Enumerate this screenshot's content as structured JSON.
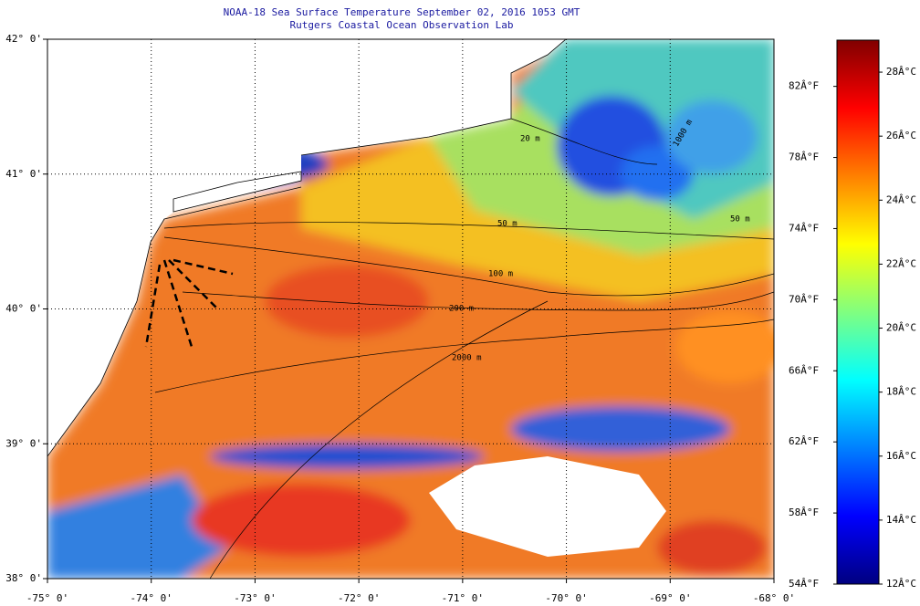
{
  "title": "NOAA-18 Sea Surface Temperature September 02, 2016 1053 GMT",
  "subtitle": "Rutgers Coastal Ocean Observation Lab",
  "map": {
    "xlim": [
      -75,
      -68
    ],
    "ylim": [
      38,
      42
    ],
    "xticks": [
      {
        "value": -75,
        "label": "-75° 0'"
      },
      {
        "value": -74,
        "label": "-74° 0'"
      },
      {
        "value": -73,
        "label": "-73° 0'"
      },
      {
        "value": -72,
        "label": "-72° 0'"
      },
      {
        "value": -71,
        "label": "-71° 0'"
      },
      {
        "value": -70,
        "label": "-70° 0'"
      },
      {
        "value": -69,
        "label": "-69° 0'"
      },
      {
        "value": -68,
        "label": "-68° 0'"
      }
    ],
    "yticks": [
      {
        "value": 38,
        "label": "38° 0'"
      },
      {
        "value": 39,
        "label": "39° 0'"
      },
      {
        "value": 40,
        "label": "40° 0'"
      },
      {
        "value": 41,
        "label": "41° 0'"
      },
      {
        "value": 42,
        "label": "42° 0'"
      }
    ],
    "grid": true,
    "contour_labels": [
      "20 m",
      "50 m",
      "100 m",
      "200 m",
      "2000 m",
      "1000 m",
      "50 m"
    ]
  },
  "colorbar": {
    "colors": [
      "#000080",
      "#0000ff",
      "#0080ff",
      "#00ffff",
      "#80ff80",
      "#ffff00",
      "#ff8000",
      "#ff0000",
      "#800000"
    ],
    "clim": [
      12,
      29
    ],
    "celsius_ticks": [
      {
        "value": 12,
        "label": "12Â°C"
      },
      {
        "value": 14,
        "label": "14Â°C"
      },
      {
        "value": 16,
        "label": "16Â°C"
      },
      {
        "value": 18,
        "label": "18Â°C"
      },
      {
        "value": 20,
        "label": "20Â°C"
      },
      {
        "value": 22,
        "label": "22Â°C"
      },
      {
        "value": 24,
        "label": "24Â°C"
      },
      {
        "value": 26,
        "label": "26Â°C"
      },
      {
        "value": 28,
        "label": "28Â°C"
      }
    ],
    "flim": [
      54,
      84.6
    ],
    "fahrenheit_ticks": [
      {
        "value": 54,
        "label": "54Â°F"
      },
      {
        "value": 58,
        "label": "58Â°F"
      },
      {
        "value": 62,
        "label": "62Â°F"
      },
      {
        "value": 66,
        "label": "66Â°F"
      },
      {
        "value": 70,
        "label": "70Â°F"
      },
      {
        "value": 74,
        "label": "74Â°F"
      },
      {
        "value": 78,
        "label": "78Â°F"
      },
      {
        "value": 82,
        "label": "82Â°F"
      }
    ]
  }
}
